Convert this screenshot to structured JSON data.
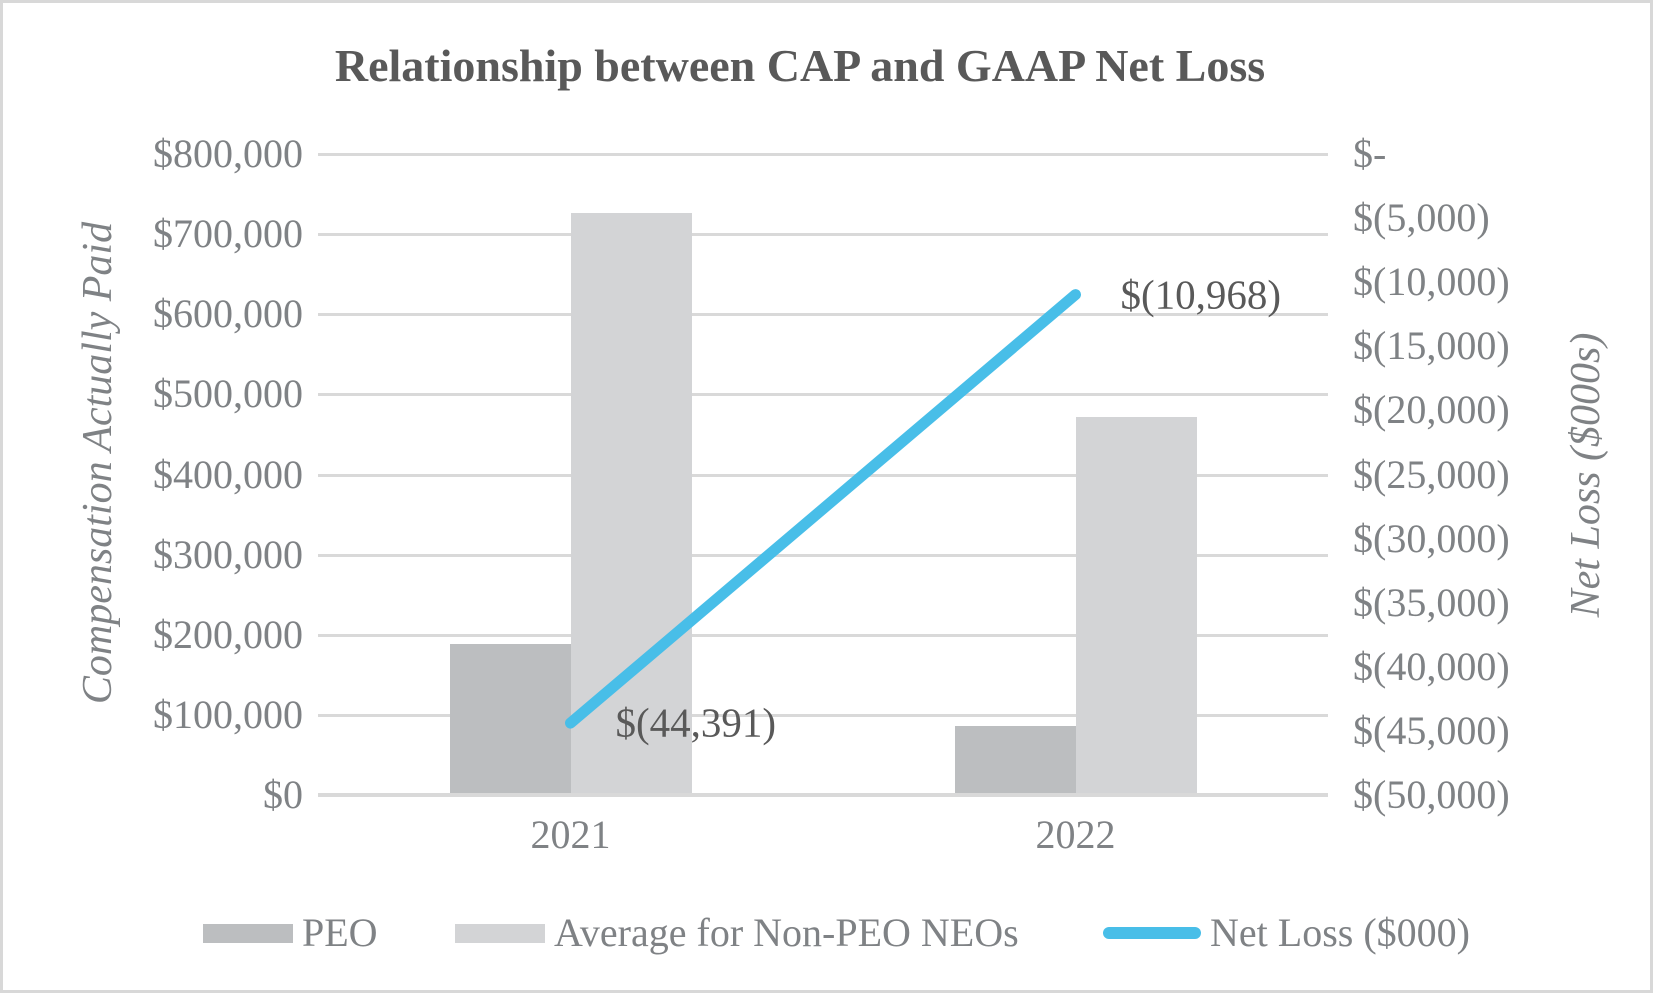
{
  "chart_data": {
    "type": "combo-bar-line",
    "title": "Relationship between CAP and GAAP Net Loss",
    "categories": [
      "2021",
      "2022"
    ],
    "bar_series": [
      {
        "key": "peo",
        "name": "PEO",
        "values": [
          188000,
          86000
        ],
        "color": "#bcbec0"
      },
      {
        "key": "nonpeo",
        "name": "Average for Non-PEO NEOs",
        "values": [
          726000,
          472000
        ],
        "color": "#d3d4d6"
      }
    ],
    "line_series": {
      "key": "net-loss",
      "name": "Net Loss ($000)",
      "values": [
        -44391,
        -10968
      ],
      "data_labels": [
        "$(44,391)",
        "$(10,968)"
      ],
      "color": "#48bee8",
      "axis": "right"
    },
    "left_axis": {
      "title": "Compensation Actually Paid",
      "min": 0,
      "max": 800000,
      "ticks": [
        "$800,000",
        "$700,000",
        "$600,000",
        "$500,000",
        "$400,000",
        "$300,000",
        "$200,000",
        "$100,000",
        "$0"
      ]
    },
    "right_axis": {
      "title": "Net Loss ($000s)",
      "min": -50000,
      "max": 0,
      "ticks": [
        "$-",
        "$(5,000)",
        "$(10,000)",
        "$(15,000)",
        "$(20,000)",
        "$(25,000)",
        "$(30,000)",
        "$(35,000)",
        "$(40,000)",
        "$(45,000)",
        "$(50,000)"
      ]
    },
    "legend": [
      {
        "key": "peo",
        "label": "PEO",
        "swatch": "bar",
        "color": "#bcbec0"
      },
      {
        "key": "nonpeo",
        "label": "Average for Non-PEO NEOs",
        "swatch": "bar",
        "color": "#d3d4d6"
      },
      {
        "key": "net-loss",
        "label": "Net Loss ($000)",
        "swatch": "line",
        "color": "#48bee8"
      }
    ],
    "grid": true,
    "legend_position": "bottom",
    "colors": {
      "title_text": "#595959",
      "axis_text": "#7f8285",
      "data_label_text": "#595959",
      "gridline": "#d9d9d9",
      "frame_border": "#d8d8d8",
      "background": "#ffffff"
    }
  }
}
